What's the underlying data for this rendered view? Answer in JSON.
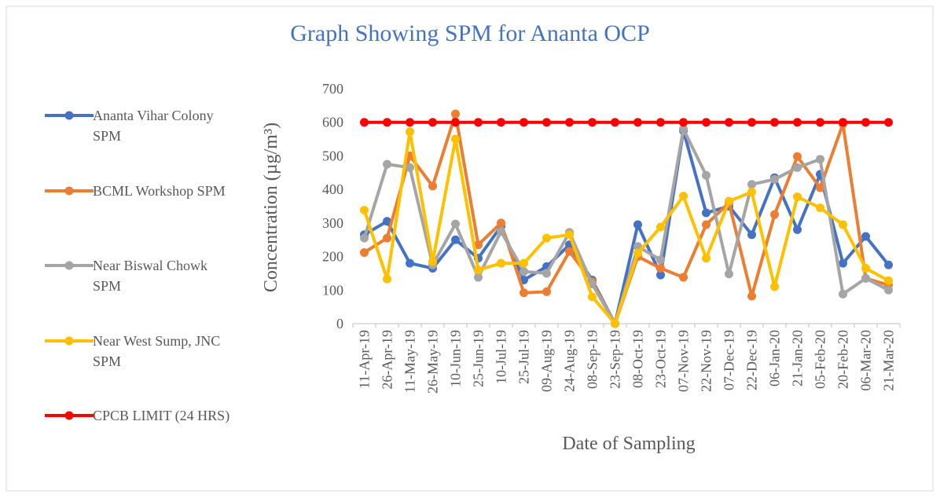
{
  "chart_data": {
    "type": "line",
    "title": "Graph Showing SPM  for Ananta OCP",
    "x_label": "Date of Sampling",
    "y_label": "Concentration  (µg/m³)",
    "categories": [
      "11-Apr-19",
      "26-Apr-19",
      "11-May-19",
      "26-May-19",
      "10-Jun-19",
      "25-Jun-19",
      "10-Jul-19",
      "25-Jul-19",
      "09-Aug-19",
      "24-Aug-19",
      "08-Sep-19",
      "23-Sep-19",
      "08-Oct-19",
      "23-Oct-19",
      "07-Nov-19",
      "22-Nov-19",
      "07-Dec-19",
      "22-Dec-19",
      "06-Jan-20",
      "21-Jan-20",
      "05-Feb-20",
      "20-Feb-20",
      "06-Mar-20",
      "21-Mar-20"
    ],
    "ylim": [
      0,
      700
    ],
    "yticks": [
      0,
      100,
      200,
      300,
      400,
      500,
      600,
      700
    ],
    "grid": false,
    "legend": "left",
    "series": [
      {
        "name": "Ananta Vihar Colony SPM",
        "color": "#4472c4",
        "values": [
          265,
          305,
          180,
          165,
          250,
          195,
          290,
          130,
          170,
          235,
          130,
          0,
          295,
          145,
          575,
          330,
          350,
          265,
          435,
          280,
          445,
          180,
          260,
          175
        ]
      },
      {
        "name": "BCML Workshop SPM",
        "color": "#ed7d31",
        "values": [
          212,
          255,
          500,
          410,
          625,
          235,
          300,
          92,
          95,
          215,
          125,
          0,
          200,
          165,
          138,
          295,
          360,
          82,
          325,
          498,
          405,
          595,
          135,
          115
        ]
      },
      {
        "name": "Near Biswal Chowk SPM",
        "color": "#a5a5a5",
        "values": [
          255,
          475,
          465,
          175,
          297,
          138,
          275,
          155,
          150,
          272,
          118,
          0,
          230,
          190,
          580,
          442,
          148,
          415,
          430,
          465,
          490,
          88,
          135,
          100
        ]
      },
      {
        "name": "Near West Sump, JNC SPM",
        "color": "#ffc000",
        "values": [
          338,
          133,
          572,
          185,
          550,
          160,
          180,
          180,
          255,
          265,
          80,
          0,
          210,
          288,
          380,
          195,
          365,
          392,
          110,
          378,
          345,
          295,
          165,
          128
        ]
      },
      {
        "name": "CPCB LIMIT (24 HRS)",
        "color": "#ff0000",
        "values": [
          600,
          600,
          600,
          600,
          600,
          600,
          600,
          600,
          600,
          600,
          600,
          600,
          600,
          600,
          600,
          600,
          600,
          600,
          600,
          600,
          600,
          600,
          600,
          600
        ]
      }
    ]
  }
}
